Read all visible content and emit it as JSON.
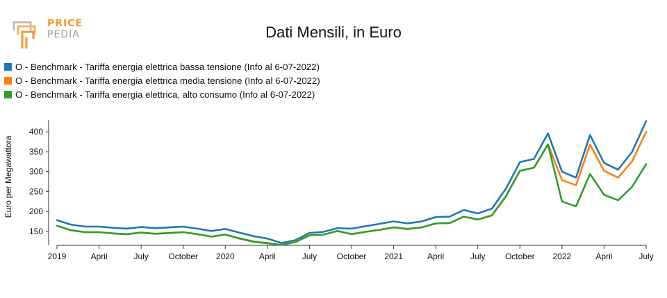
{
  "logo": {
    "line1": "PRICE",
    "line2": "PEDIA"
  },
  "title": "Dati Mensili, in Euro",
  "legend": [
    {
      "label": "O - Benchmark - Tariffa energia elettrica bassa tensione (Info al 6-07-2022)",
      "color": "#1f77b4"
    },
    {
      "label": "O - Benchmark - Tariffa energia elettrica media tensione (Info al 6-07-2022)",
      "color": "#ff7f0e"
    },
    {
      "label": "O - Benchmark - Tariffa energia elettrica, alto consumo (Info al 6-07-2022)",
      "color": "#2ca02c"
    }
  ],
  "chart_data": {
    "type": "line",
    "ylabel": "Euro per Megawattora",
    "xlabel": "",
    "ylim": [
      115,
      430
    ],
    "yticks": [
      150,
      200,
      250,
      300,
      350,
      400
    ],
    "x_start": "2019-01",
    "x_end": "2022-07",
    "xticks": [
      {
        "label": "2019",
        "month": "2019-01"
      },
      {
        "label": "April",
        "month": "2019-04"
      },
      {
        "label": "July",
        "month": "2019-07"
      },
      {
        "label": "October",
        "month": "2019-10"
      },
      {
        "label": "2020",
        "month": "2020-01"
      },
      {
        "label": "April",
        "month": "2020-04"
      },
      {
        "label": "July",
        "month": "2020-07"
      },
      {
        "label": "October",
        "month": "2020-10"
      },
      {
        "label": "2021",
        "month": "2021-01"
      },
      {
        "label": "April",
        "month": "2021-04"
      },
      {
        "label": "July",
        "month": "2021-07"
      },
      {
        "label": "October",
        "month": "2021-10"
      },
      {
        "label": "2022",
        "month": "2022-01"
      },
      {
        "label": "April",
        "month": "2022-04"
      },
      {
        "label": "July",
        "month": "2022-07"
      }
    ],
    "x": [
      "2019-01",
      "2019-02",
      "2019-03",
      "2019-04",
      "2019-05",
      "2019-06",
      "2019-07",
      "2019-08",
      "2019-09",
      "2019-10",
      "2019-11",
      "2019-12",
      "2020-01",
      "2020-02",
      "2020-03",
      "2020-04",
      "2020-05",
      "2020-06",
      "2020-07",
      "2020-08",
      "2020-09",
      "2020-10",
      "2020-11",
      "2020-12",
      "2021-01",
      "2021-02",
      "2021-03",
      "2021-04",
      "2021-05",
      "2021-06",
      "2021-07",
      "2021-08",
      "2021-09",
      "2021-10",
      "2021-11",
      "2021-12",
      "2022-01",
      "2022-02",
      "2022-03",
      "2022-04",
      "2022-05",
      "2022-06",
      "2022-07"
    ],
    "series": [
      {
        "name": "O - Benchmark - Tariffa energia elettrica bassa tensione (Info al 6-07-2022)",
        "color": "#1f77b4",
        "values": [
          178,
          167,
          162,
          162,
          159,
          157,
          161,
          158,
          160,
          162,
          157,
          151,
          156,
          147,
          138,
          132,
          121,
          128,
          146,
          149,
          158,
          157,
          163,
          169,
          175,
          170,
          175,
          186,
          187,
          204,
          195,
          207,
          257,
          324,
          332,
          396,
          300,
          285,
          392,
          322,
          305,
          350,
          427
        ]
      },
      {
        "name": "O - Benchmark - Tariffa energia elettrica media tensione (Info al 6-07-2022)",
        "color": "#ff7f0e",
        "values": [
          164,
          153,
          148,
          148,
          145,
          143,
          147,
          144,
          146,
          148,
          143,
          137,
          142,
          133,
          125,
          121,
          116,
          124,
          140,
          142,
          151,
          143,
          149,
          154,
          160,
          156,
          160,
          170,
          171,
          187,
          180,
          190,
          238,
          302,
          310,
          369,
          279,
          266,
          368,
          302,
          285,
          326,
          400
        ]
      },
      {
        "name": "O - Benchmark - Tariffa energia elettrica, alto consumo (Info al 6-07-2022)",
        "color": "#2ca02c",
        "values": [
          164,
          153,
          148,
          148,
          145,
          143,
          147,
          144,
          146,
          148,
          143,
          137,
          142,
          132,
          124,
          120,
          116,
          123,
          140,
          142,
          151,
          143,
          149,
          154,
          160,
          156,
          160,
          170,
          171,
          187,
          180,
          190,
          238,
          302,
          310,
          368,
          225,
          213,
          294,
          242,
          228,
          262,
          319
        ]
      }
    ]
  }
}
